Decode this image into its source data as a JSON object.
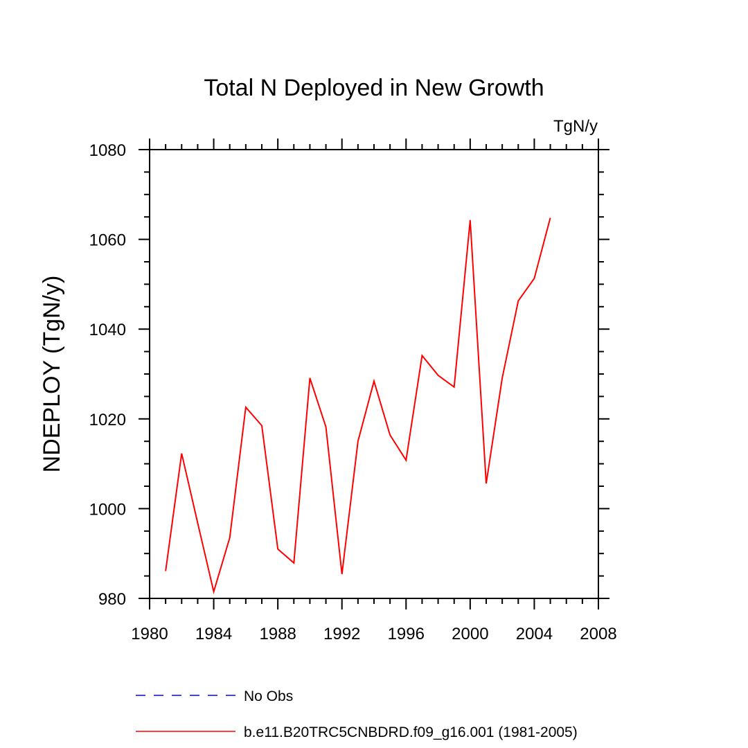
{
  "chart_data": {
    "type": "line",
    "title": "Total N Deployed in New Growth",
    "units_label": "TgN/y",
    "ylabel": "NDEPLOY  (TgN/y)",
    "xlabel": "",
    "xlim": [
      1980,
      2008
    ],
    "ylim": [
      980,
      1080
    ],
    "x_ticks": [
      1980,
      1984,
      1988,
      1992,
      1996,
      2000,
      2004,
      2008
    ],
    "y_ticks": [
      980,
      1000,
      1020,
      1040,
      1060,
      1080
    ],
    "x_tick_labels": [
      "1980",
      "1984",
      "1988",
      "1992",
      "1996",
      "2000",
      "2004",
      "2008"
    ],
    "y_tick_labels": [
      "980",
      "1000",
      "1020",
      "1040",
      "1060",
      "1080"
    ],
    "grid": false,
    "legend_position": "bottom",
    "series": [
      {
        "name": "No Obs",
        "color": "#0000ff",
        "style": "dashed",
        "x": [],
        "values": []
      },
      {
        "name": "b.e11.B20TRC5CNBDRD.f09_g16.001 (1981-2005)",
        "color": "#ff0000",
        "style": "solid",
        "x": [
          1981,
          1982,
          1983,
          1984,
          1985,
          1986,
          1987,
          1988,
          1989,
          1990,
          1991,
          1992,
          1993,
          1994,
          1995,
          1996,
          1997,
          1998,
          1999,
          2000,
          2001,
          2002,
          2003,
          2004,
          2005
        ],
        "values": [
          986.1,
          1012.3,
          996.8,
          981.5,
          993.5,
          1022.6,
          1018.5,
          991.0,
          987.9,
          1029.1,
          1018.2,
          985.4,
          1015.0,
          1028.4,
          1016.4,
          1010.8,
          1034.1,
          1029.7,
          1027.1,
          1064.3,
          1005.6,
          1029.1,
          1046.3,
          1051.3,
          1064.8
        ]
      }
    ]
  }
}
